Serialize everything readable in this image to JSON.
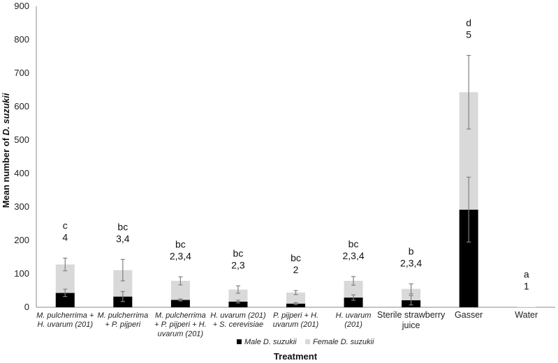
{
  "chart_data": {
    "type": "bar",
    "stacked": true,
    "ylabel_prefix": "Mean number of ",
    "ylabel_italic": "D. suzukii",
    "xlabel": "Treatment",
    "ylim": [
      0,
      900
    ],
    "yticks": [
      0,
      100,
      200,
      300,
      400,
      500,
      600,
      700,
      800,
      900
    ],
    "grid": false,
    "legend_position": "bottom",
    "colors": {
      "male": "#000000",
      "female": "#d9d9d9",
      "error": "#808080"
    },
    "categories": [
      {
        "lines": [
          "M. pulcherrima +",
          "H. uvarum (201)"
        ],
        "italic": true
      },
      {
        "lines": [
          "M. pulcherrima",
          "+  P. pijperi"
        ],
        "italic": true
      },
      {
        "lines": [
          "M. pulcherrima",
          "+  P. pijperi + H.",
          "uvarum (201)"
        ],
        "italic": true
      },
      {
        "lines": [
          "H. uvarum (201)",
          "+ S. cerevisiae"
        ],
        "italic": true
      },
      {
        "lines": [
          "P. pijperi + H.",
          "uvarum (201)"
        ],
        "italic": true
      },
      {
        "lines": [
          "H. uvarum",
          "(201)"
        ],
        "italic": true
      },
      {
        "lines": [
          "Sterile strawberry",
          "juice"
        ],
        "italic": false
      },
      {
        "lines": [
          "Gasser"
        ],
        "italic": false
      },
      {
        "lines": [
          "Water"
        ],
        "italic": false
      }
    ],
    "series": [
      {
        "name": "Male D. suzukii",
        "key": "male",
        "values": [
          43,
          32,
          22,
          17,
          11,
          29,
          21,
          292,
          0
        ],
        "errors": [
          11,
          15,
          3,
          4,
          3,
          8,
          14,
          97,
          0
        ]
      },
      {
        "name": "Female D. suzukii",
        "key": "female",
        "values": [
          85,
          79,
          57,
          36,
          33,
          50,
          34,
          351,
          1
        ],
        "errors": [
          19,
          32,
          12,
          11,
          6,
          13,
          15,
          110,
          0
        ]
      }
    ],
    "annotations": [
      {
        "letter": "c",
        "group": "4"
      },
      {
        "letter": "bc",
        "group": "3,4"
      },
      {
        "letter": "bc",
        "group": "2,3,4"
      },
      {
        "letter": "bc",
        "group": "2,3"
      },
      {
        "letter": "bc",
        "group": "2"
      },
      {
        "letter": "bc",
        "group": "2,3,4"
      },
      {
        "letter": "b",
        "group": "2,3,4"
      },
      {
        "letter": "d",
        "group": "5"
      },
      {
        "letter": "a",
        "group": "1"
      }
    ]
  }
}
